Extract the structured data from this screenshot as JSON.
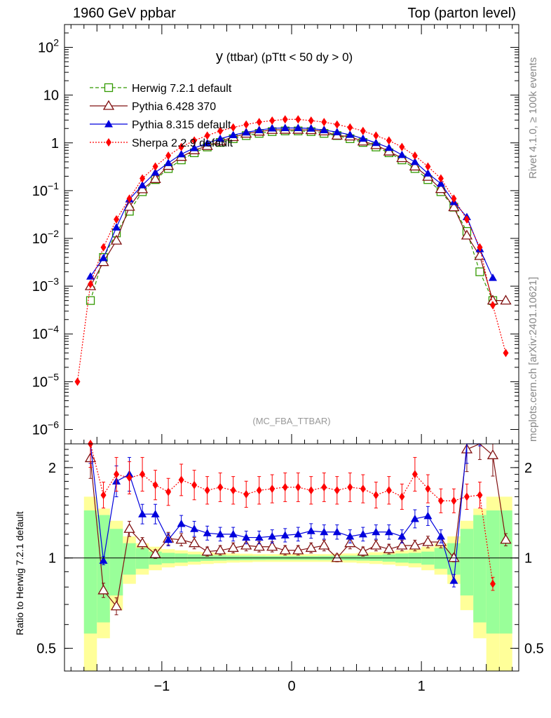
{
  "header": {
    "left": "1960 GeV ppbar",
    "right": "Top (parton level)"
  },
  "side_labels": {
    "rivet": "Rivet 4.1.0, ≥ 100k events",
    "mcplots": "mcplots.cern.ch [arXiv:2401.10621]"
  },
  "ratio_ylabel": "Ratio to Herwig 7.2.1 default",
  "colors": {
    "herwig": "#339900",
    "pythia6": "#801010",
    "pythia8": "#0000dd",
    "sherpa": "#ff0000",
    "band_green": "#99ff99",
    "band_yellow": "#ffff99"
  },
  "chart_data": {
    "type": "line",
    "title": "y (ttbar) (pTtt < 50 dy > 0)",
    "title_main": "y",
    "title_rest": " (ttbar) (pTtt < 50 dy > 0)",
    "watermark": "(MC_FBA_TTBAR)",
    "x": [
      -1.65,
      -1.55,
      -1.45,
      -1.35,
      -1.25,
      -1.15,
      -1.05,
      -0.95,
      -0.85,
      -0.75,
      -0.65,
      -0.55,
      -0.45,
      -0.35,
      -0.25,
      -0.15,
      -0.05,
      0.05,
      0.15,
      0.25,
      0.35,
      0.45,
      0.55,
      0.65,
      0.75,
      0.85,
      0.95,
      1.05,
      1.15,
      1.25,
      1.35,
      1.45,
      1.55,
      1.65
    ],
    "xlim": [
      -1.75,
      1.75
    ],
    "xticks": [
      -1,
      0,
      1
    ],
    "xtick_labels": [
      "−1",
      "0",
      "1"
    ],
    "main_ylim": [
      5e-07,
      300
    ],
    "main_yticks": [
      {
        "value": 1e-06,
        "base": "10",
        "exp": "−6"
      },
      {
        "value": 1e-05,
        "base": "10",
        "exp": "−5"
      },
      {
        "value": 0.0001,
        "base": "10",
        "exp": "−4"
      },
      {
        "value": 0.001,
        "base": "10",
        "exp": "−3"
      },
      {
        "value": 0.01,
        "base": "10",
        "exp": "−2"
      },
      {
        "value": 0.1,
        "base": "10",
        "exp": "−1"
      },
      {
        "value": 1,
        "base": "1",
        "exp": ""
      },
      {
        "value": 10,
        "base": "10",
        "exp": ""
      },
      {
        "value": 100,
        "base": "10",
        "exp": "2"
      }
    ],
    "ratio_ylim": [
      0.42,
      2.4
    ],
    "ratio_yticks": [
      0.5,
      1,
      2
    ],
    "ratio_ytick_labels": [
      "0.5",
      "1",
      "2"
    ],
    "series": [
      {
        "name": "Herwig 7.2.1 default",
        "key": "herwig",
        "marker": "square",
        "linestyle": "dashed",
        "values": [
          null,
          0.0005,
          0.004,
          0.013,
          0.037,
          0.095,
          0.17,
          0.29,
          0.44,
          0.62,
          0.82,
          1.02,
          1.22,
          1.42,
          1.58,
          1.72,
          1.78,
          1.78,
          1.72,
          1.58,
          1.42,
          1.22,
          1.02,
          0.82,
          0.62,
          0.44,
          0.29,
          0.17,
          0.095,
          0.045,
          0.014,
          0.002,
          0.0005,
          null
        ],
        "ratio": [
          null,
          null,
          null,
          null,
          null,
          null,
          null,
          null,
          null,
          null,
          null,
          null,
          null,
          null,
          null,
          null,
          null,
          null,
          null,
          null,
          null,
          null,
          null,
          null,
          null,
          null,
          null,
          null,
          null,
          null,
          null,
          null,
          null,
          null
        ]
      },
      {
        "name": "Pythia 6.428 370",
        "key": "pythia6",
        "marker": "triangle-open",
        "linestyle": "solid",
        "values": [
          null,
          0.001,
          0.0032,
          0.009,
          0.046,
          0.107,
          0.175,
          0.33,
          0.51,
          0.7,
          0.86,
          1.08,
          1.32,
          1.56,
          1.72,
          1.87,
          1.88,
          1.88,
          1.85,
          1.74,
          1.42,
          1.36,
          1.07,
          0.9,
          0.66,
          0.48,
          0.32,
          0.195,
          0.108,
          0.045,
          0.0115,
          0.0043,
          0.0005,
          0.0005
        ],
        "ratio": [
          null,
          2.15,
          0.78,
          0.69,
          1.25,
          1.12,
          1.03,
          1.16,
          1.15,
          1.12,
          1.05,
          1.06,
          1.08,
          1.1,
          1.09,
          1.09,
          1.06,
          1.06,
          1.08,
          1.1,
          1.0,
          1.12,
          1.05,
          1.1,
          1.07,
          1.1,
          1.1,
          1.13,
          1.13,
          1.0,
          2.3,
          2.6,
          2.2,
          1.15
        ]
      },
      {
        "name": "Pythia 8.315 default",
        "key": "pythia8",
        "marker": "triangle-filled",
        "linestyle": "solid",
        "values": [
          null,
          0.0016,
          0.0039,
          0.017,
          0.066,
          0.13,
          0.24,
          0.38,
          0.58,
          0.78,
          0.98,
          1.22,
          1.46,
          1.66,
          1.85,
          2.02,
          2.05,
          2.05,
          2.0,
          1.85,
          1.68,
          1.48,
          1.23,
          1.0,
          0.79,
          0.56,
          0.4,
          0.23,
          0.14,
          0.058,
          0.028,
          0.006,
          0.0015,
          null
        ],
        "ratio": [
          null,
          2.5,
          0.98,
          1.8,
          1.9,
          1.4,
          1.4,
          1.15,
          1.3,
          1.25,
          1.21,
          1.2,
          1.2,
          1.17,
          1.17,
          1.18,
          1.19,
          1.2,
          1.23,
          1.22,
          1.22,
          1.18,
          1.2,
          1.22,
          1.22,
          1.18,
          1.35,
          1.38,
          1.18,
          0.84,
          2.5,
          3.0,
          null,
          null
        ]
      },
      {
        "name": "Sherpa 2.2.9 default",
        "key": "sherpa",
        "marker": "diamond",
        "linestyle": "dotted",
        "values": [
          1e-05,
          0.0011,
          0.0065,
          0.025,
          0.068,
          0.18,
          0.32,
          0.54,
          0.82,
          1.12,
          1.42,
          1.78,
          2.1,
          2.42,
          2.72,
          2.92,
          3.1,
          3.1,
          2.92,
          2.72,
          2.42,
          2.1,
          1.78,
          1.42,
          1.12,
          0.82,
          0.54,
          0.32,
          0.18,
          0.068,
          0.025,
          0.0065,
          0.0004,
          4e-05
        ],
        "ratio": [
          null,
          2.4,
          1.62,
          1.9,
          1.85,
          1.9,
          1.75,
          1.66,
          1.82,
          1.75,
          1.68,
          1.72,
          1.68,
          1.63,
          1.68,
          1.7,
          1.72,
          1.72,
          1.68,
          1.72,
          1.68,
          1.72,
          1.7,
          1.62,
          1.68,
          1.6,
          1.9,
          1.7,
          1.55,
          1.55,
          1.6,
          1.62,
          0.82,
          null
        ]
      }
    ],
    "ratio_bands": {
      "green_half": [
        null,
        0.44,
        0.39,
        0.25,
        0.12,
        0.08,
        0.05,
        0.04,
        0.035,
        0.028,
        0.022,
        0.02,
        0.018,
        0.017,
        0.016,
        0.015,
        0.015,
        0.015,
        0.015,
        0.016,
        0.017,
        0.018,
        0.02,
        0.022,
        0.028,
        0.035,
        0.04,
        0.05,
        0.08,
        0.12,
        0.25,
        0.39,
        0.44,
        0.44
      ],
      "yellow_half": [
        null,
        0.6,
        0.46,
        0.33,
        0.18,
        0.12,
        0.09,
        0.07,
        0.06,
        0.05,
        0.045,
        0.04,
        0.035,
        0.033,
        0.03,
        0.03,
        0.03,
        0.03,
        0.03,
        0.03,
        0.033,
        0.035,
        0.04,
        0.045,
        0.05,
        0.06,
        0.07,
        0.09,
        0.12,
        0.18,
        0.33,
        0.46,
        0.6,
        0.6
      ]
    }
  }
}
